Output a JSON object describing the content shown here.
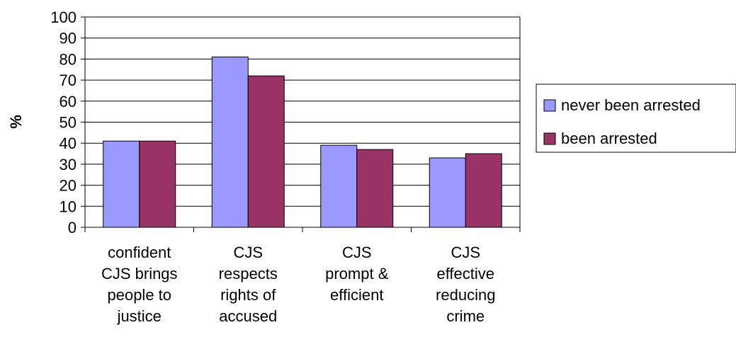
{
  "chart_data": {
    "type": "bar",
    "categories": [
      [
        "confident",
        "CJS brings",
        "people to",
        "justice"
      ],
      [
        "CJS",
        "respects",
        "rights of",
        "accused"
      ],
      [
        "CJS",
        "prompt &",
        "efficient"
      ],
      [
        "CJS",
        "effective",
        "reducing",
        "crime"
      ]
    ],
    "series": [
      {
        "name": "never been arrested",
        "values": [
          41,
          81,
          39,
          33
        ],
        "color": "#9999ff"
      },
      {
        "name": "been arrested",
        "values": [
          41,
          72,
          37,
          35
        ],
        "color": "#993366"
      }
    ],
    "ylabel": "%",
    "ylim": [
      0,
      100
    ],
    "yticks": [
      0,
      10,
      20,
      30,
      40,
      50,
      60,
      70,
      80,
      90,
      100
    ],
    "grid": true,
    "legend": "right"
  }
}
